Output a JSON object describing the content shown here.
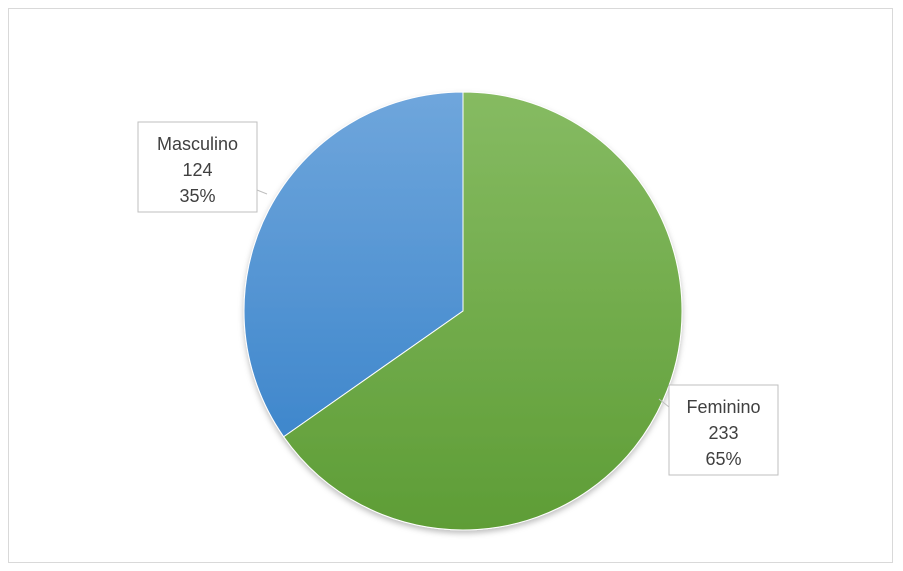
{
  "chart_data": {
    "type": "pie",
    "title": "",
    "categories": [
      "Masculino",
      "Feminino"
    ],
    "values": [
      124,
      233
    ],
    "percent_labels": [
      "35%",
      "65%"
    ],
    "colors": [
      "#5b9bd5",
      "#70ad47"
    ],
    "start_angle_deg": 0,
    "direction": "counterclockwise",
    "data_labels": "name, value, percent (callout boxes)",
    "legend": "none",
    "grid": false
  }
}
